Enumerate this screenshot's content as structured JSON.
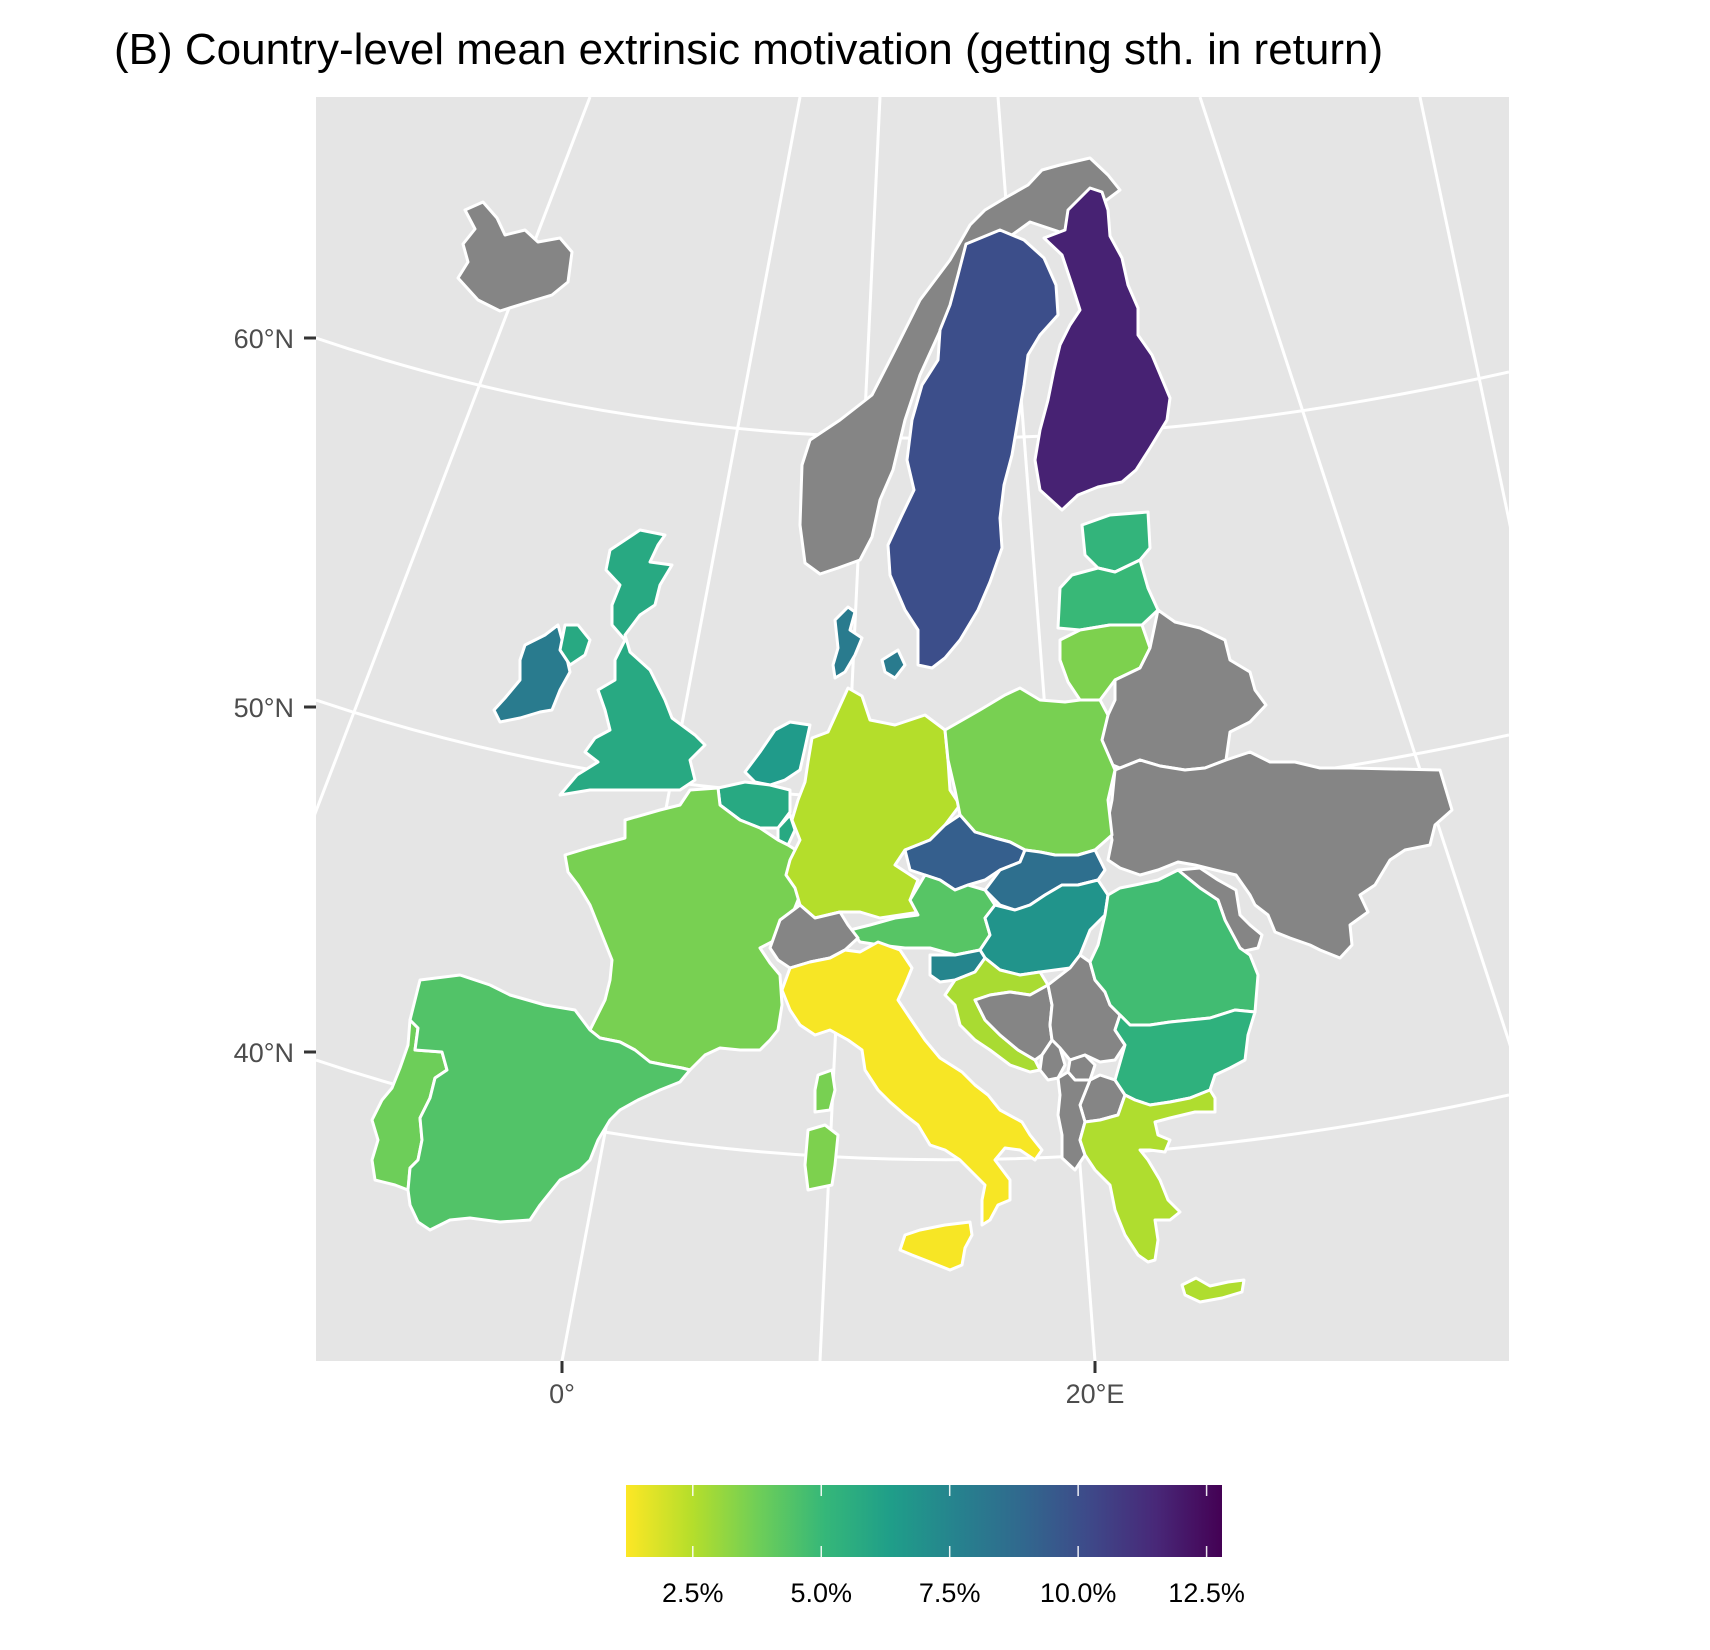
{
  "title": "(B) Country-level mean extrinsic motivation (getting sth. in return)",
  "axes": {
    "lat_labels": [
      "60°N",
      "50°N",
      "40°N"
    ],
    "lon_labels": [
      "0°",
      "20°E"
    ]
  },
  "legend": {
    "placement": "bottom",
    "scale": "viridis",
    "min": 1.2,
    "max": 12.8,
    "tick_values": [
      2.5,
      5.0,
      7.5,
      10.0,
      12.5
    ],
    "tick_labels": [
      "2.5%",
      "5.0%",
      "7.5%",
      "10.0%",
      "12.5%"
    ]
  },
  "colors": {
    "panel_background": "#e5e5e5",
    "graticule": "#ffffff",
    "no_data": "#858585",
    "border": "#ffffff",
    "viridis_stops": [
      "#fde725",
      "#b5de2b",
      "#6ece58",
      "#35b779",
      "#1f9e89",
      "#26828e",
      "#31688e",
      "#3e4989",
      "#482878",
      "#440154"
    ]
  },
  "chart_data": {
    "type": "choropleth",
    "value_unit": "%",
    "countries": [
      {
        "name": "Iceland",
        "value": null
      },
      {
        "name": "Norway",
        "value": null
      },
      {
        "name": "Sweden",
        "value": 10.0
      },
      {
        "name": "Finland",
        "value": 11.7
      },
      {
        "name": "Estonia",
        "value": 5.2
      },
      {
        "name": "Latvia",
        "value": 5.0
      },
      {
        "name": "Lithuania",
        "value": 3.5
      },
      {
        "name": "Russia",
        "value": null
      },
      {
        "name": "Belarus",
        "value": null
      },
      {
        "name": "Ukraine",
        "value": null
      },
      {
        "name": "Moldova",
        "value": null
      },
      {
        "name": "Ireland",
        "value": 8.0
      },
      {
        "name": "Northern Ireland",
        "value": 5.8
      },
      {
        "name": "United Kingdom",
        "value": 5.8
      },
      {
        "name": "Denmark",
        "value": 8.0
      },
      {
        "name": "Netherlands",
        "value": 6.5
      },
      {
        "name": "Belgium",
        "value": 5.8
      },
      {
        "name": "Luxembourg",
        "value": 5.8
      },
      {
        "name": "France",
        "value": 3.6
      },
      {
        "name": "Germany",
        "value": 2.5
      },
      {
        "name": "Poland",
        "value": 3.6
      },
      {
        "name": "Czechia",
        "value": 9.3
      },
      {
        "name": "Slovakia",
        "value": 8.6
      },
      {
        "name": "Austria",
        "value": 4.3
      },
      {
        "name": "Switzerland",
        "value": null
      },
      {
        "name": "Hungary",
        "value": 6.8
      },
      {
        "name": "Slovenia",
        "value": 7.5
      },
      {
        "name": "Croatia",
        "value": 2.7
      },
      {
        "name": "Bosnia and Herzegovina",
        "value": null
      },
      {
        "name": "Serbia",
        "value": null
      },
      {
        "name": "Montenegro",
        "value": null
      },
      {
        "name": "Kosovo",
        "value": null
      },
      {
        "name": "North Macedonia",
        "value": null
      },
      {
        "name": "Albania",
        "value": null
      },
      {
        "name": "Romania",
        "value": 4.8
      },
      {
        "name": "Bulgaria",
        "value": 5.4
      },
      {
        "name": "Greece",
        "value": 2.6
      },
      {
        "name": "Cyprus",
        "value": 2.6
      },
      {
        "name": "Portugal",
        "value": 3.8
      },
      {
        "name": "Spain",
        "value": 4.4
      },
      {
        "name": "Italy",
        "value": 1.3
      },
      {
        "name": "Sardinia",
        "value": 3.5
      },
      {
        "name": "Corsica",
        "value": 3.6
      }
    ]
  }
}
